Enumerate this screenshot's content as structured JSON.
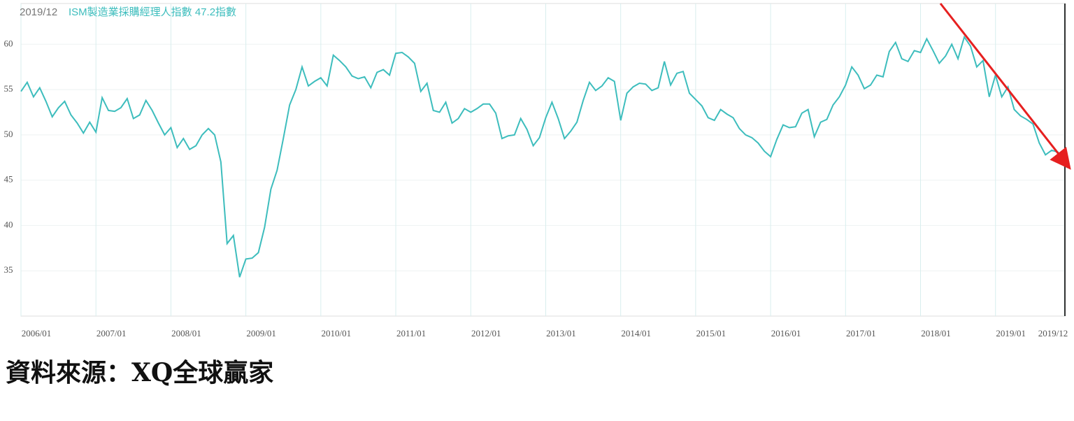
{
  "chart_data": {
    "type": "line",
    "header_date": "2019/12",
    "title": "ISM製造業採購經理人指數 47.2指數",
    "source": "資料來源：XQ全球贏家",
    "categories": [
      "2006/01",
      null,
      null,
      null,
      null,
      null,
      null,
      null,
      null,
      null,
      null,
      null,
      "2007/01",
      null,
      null,
      null,
      null,
      null,
      null,
      null,
      null,
      null,
      null,
      null,
      "2008/01",
      null,
      null,
      null,
      null,
      null,
      null,
      null,
      null,
      null,
      null,
      null,
      "2009/01",
      null,
      null,
      null,
      null,
      null,
      null,
      null,
      null,
      null,
      null,
      null,
      "2010/01",
      null,
      null,
      null,
      null,
      null,
      null,
      null,
      null,
      null,
      null,
      null,
      "2011/01",
      null,
      null,
      null,
      null,
      null,
      null,
      null,
      null,
      null,
      null,
      null,
      "2012/01",
      null,
      null,
      null,
      null,
      null,
      null,
      null,
      null,
      null,
      null,
      null,
      "2013/01",
      null,
      null,
      null,
      null,
      null,
      null,
      null,
      null,
      null,
      null,
      null,
      "2014/01",
      null,
      null,
      null,
      null,
      null,
      null,
      null,
      null,
      null,
      null,
      null,
      "2015/01",
      null,
      null,
      null,
      null,
      null,
      null,
      null,
      null,
      null,
      null,
      null,
      "2016/01",
      null,
      null,
      null,
      null,
      null,
      null,
      null,
      null,
      null,
      null,
      null,
      "2017/01",
      null,
      null,
      null,
      null,
      null,
      null,
      null,
      null,
      null,
      null,
      null,
      "2018/01",
      null,
      null,
      null,
      null,
      null,
      null,
      null,
      null,
      null,
      null,
      null,
      "2019/01",
      null,
      null,
      null,
      null,
      null,
      null,
      null,
      null,
      null,
      null,
      "2019/12"
    ],
    "series": [
      {
        "color": "#3dbdbd",
        "values": [
          54.8,
          55.8,
          54.2,
          55.2,
          53.7,
          52.0,
          53.0,
          53.7,
          52.2,
          51.3,
          50.2,
          51.4,
          50.3,
          54.1,
          52.7,
          52.6,
          53.0,
          54.0,
          51.8,
          52.2,
          53.8,
          52.7,
          51.3,
          50.0,
          50.8,
          48.6,
          49.6,
          48.4,
          48.8,
          50.0,
          50.7,
          50.0,
          47.0,
          38.0,
          38.9,
          34.3,
          36.3,
          36.4,
          37.0,
          39.8,
          44.0,
          46.1,
          49.6,
          53.3,
          55.0,
          57.5,
          55.4,
          55.9,
          56.3,
          55.4,
          58.8,
          58.2,
          57.5,
          56.5,
          56.2,
          56.4,
          55.2,
          56.9,
          57.2,
          56.6,
          59.0,
          59.1,
          58.6,
          57.9,
          54.8,
          55.7,
          52.7,
          52.5,
          53.6,
          51.3,
          51.8,
          52.9,
          52.5,
          52.9,
          53.4,
          53.4,
          52.4,
          49.6,
          49.9,
          50.0,
          51.8,
          50.6,
          48.8,
          49.7,
          51.9,
          53.6,
          51.8,
          49.6,
          50.4,
          51.4,
          53.8,
          55.8,
          54.9,
          55.4,
          56.3,
          55.9,
          51.6,
          54.6,
          55.3,
          55.7,
          55.6,
          54.9,
          55.2,
          58.1,
          55.5,
          56.8,
          57.0,
          54.6,
          53.9,
          53.2,
          51.9,
          51.6,
          52.8,
          52.3,
          51.9,
          50.7,
          50.0,
          49.7,
          49.1,
          48.2,
          47.6,
          49.5,
          51.1,
          50.8,
          50.9,
          52.4,
          52.8,
          49.8,
          51.4,
          51.7,
          53.3,
          54.2,
          55.5,
          57.5,
          56.6,
          55.1,
          55.5,
          56.6,
          56.4,
          59.2,
          60.2,
          58.4,
          58.1,
          59.3,
          59.1,
          60.6,
          59.3,
          57.9,
          58.7,
          60.0,
          58.4,
          60.8,
          59.8,
          57.5,
          58.2,
          54.2,
          56.6,
          54.2,
          55.3,
          52.8,
          52.1,
          51.7,
          51.2,
          49.1,
          47.8,
          48.3,
          48.1,
          47.2
        ]
      }
    ],
    "ylim": [
      30,
      64.5
    ],
    "yticks": [
      35,
      40,
      45,
      50,
      55,
      60
    ],
    "grid": true
  }
}
